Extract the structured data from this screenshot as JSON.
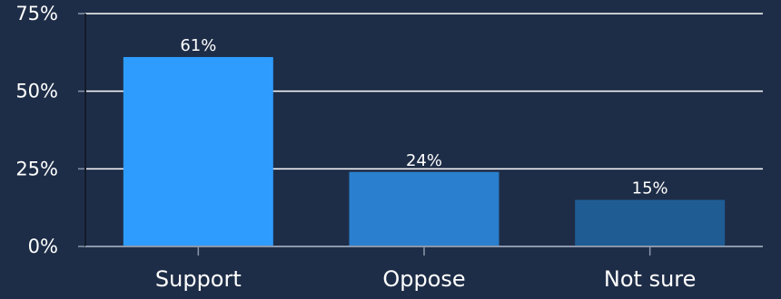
{
  "chart_data": {
    "type": "bar",
    "categories": [
      "Support",
      "Oppose",
      "Not sure"
    ],
    "values": [
      61,
      24,
      15
    ],
    "data_labels": [
      "61%",
      "24%",
      "15%"
    ],
    "bar_colors": [
      "#2e9cff",
      "#2a7fce",
      "#1f5c94"
    ],
    "ylim": [
      0,
      75
    ],
    "y_ticks": [
      0,
      25,
      50,
      75
    ],
    "y_tick_labels": [
      "0%",
      "25%",
      "50%",
      "75%"
    ],
    "grid": true,
    "title": "",
    "xlabel": "",
    "ylabel": ""
  },
  "colors": {
    "background": "#1e2d47",
    "gridline": "#ffffff",
    "axis": "#8a96aa",
    "text": "#ffffff"
  }
}
